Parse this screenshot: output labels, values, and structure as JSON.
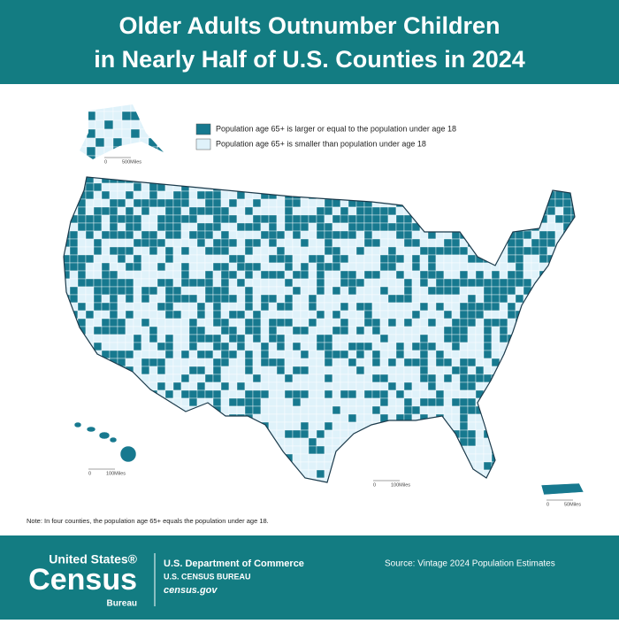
{
  "header": {
    "title_lines": [
      "Older Adults Outnumber Children",
      "in Nearly Half of U.S. Counties in 2024"
    ]
  },
  "legend": {
    "items": [
      {
        "label": "Population age 65+ is larger or equal to the population under age 18",
        "color": "#17798f"
      },
      {
        "label": "Population age 65+ is smaller than population under age 18",
        "color": "#dff2fa"
      }
    ]
  },
  "scale_bars": {
    "alaska": [
      "0",
      "500Miles"
    ],
    "hawaii": [
      "0",
      "100Miles"
    ],
    "conus": [
      "0",
      "100Miles"
    ],
    "puerto_rico": [
      "0",
      "50Miles"
    ]
  },
  "note": "Note: In four counties, the population age 65+ equals the population under age 18.",
  "footer": {
    "logo": [
      "United States®",
      "Census",
      "Bureau"
    ],
    "agency": [
      "U.S. Department of Commerce",
      "U.S. CENSUS BUREAU",
      "census.gov"
    ],
    "source": "Source: Vintage 2024 Population Estimates"
  }
}
